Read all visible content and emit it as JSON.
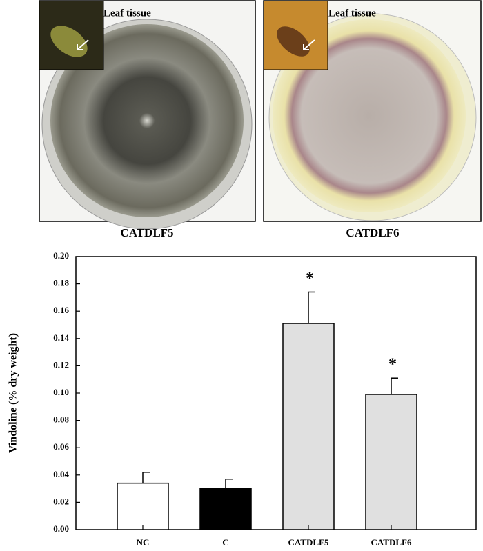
{
  "panels": [
    {
      "label": "CATDLF5",
      "inset_label": "Leaf tissue"
    },
    {
      "label": "CATDLF6",
      "inset_label": "Leaf tissue"
    }
  ],
  "chart_data": {
    "type": "bar",
    "ylabel": "Vindoline (% dry weight)",
    "categories": [
      "NC",
      "C",
      "CATDLF5",
      "CATDLF6"
    ],
    "values": [
      0.034,
      0.03,
      0.151,
      0.099
    ],
    "errors": [
      0.008,
      0.007,
      0.023,
      0.012
    ],
    "colors": [
      "#ffffff",
      "#000000",
      "#e0e0e0",
      "#e0e0e0"
    ],
    "annotations": [
      {
        "category": "CATDLF5",
        "text": "*"
      },
      {
        "category": "CATDLF6",
        "text": "*"
      }
    ],
    "ylim": [
      0,
      0.2
    ],
    "yticks": [
      {
        "value": 0,
        "label": "0.00"
      },
      {
        "value": 0.02,
        "label": "0.02"
      },
      {
        "value": 0.04,
        "label": "0.04"
      },
      {
        "value": 0.06,
        "label": "0.06"
      },
      {
        "value": 0.08,
        "label": "0.08"
      },
      {
        "value": 0.1,
        "label": "0.10"
      },
      {
        "value": 0.12,
        "label": "0.12"
      },
      {
        "value": 0.14,
        "label": "0.14"
      },
      {
        "value": 0.16,
        "label": "0.16"
      },
      {
        "value": 0.18,
        "label": "0.18"
      },
      {
        "value": 0.2,
        "label": "0.20"
      }
    ]
  }
}
